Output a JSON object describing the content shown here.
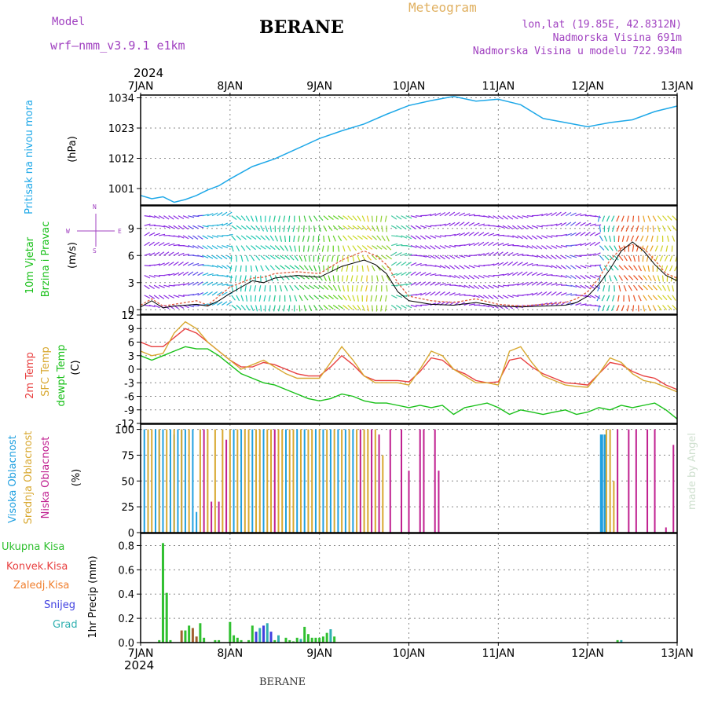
{
  "header": {
    "model_label": "Model",
    "model_name": "wrf–nmm_v3.9.1 e1km",
    "title": "BERANE",
    "meteogram": "Meteogram",
    "coords": "lon,lat (19.85E, 42.8312N)",
    "elevation": "Nadmorska Visina 691m",
    "model_elevation": "Nadmorska Visina u modelu 722.934m",
    "year_top": "2024",
    "year_bottom": "2024",
    "footer": "BERANE",
    "credit": "made by Angel"
  },
  "colors": {
    "pressure": "#1ea8e8",
    "wind_label": "#18c018",
    "temp2m": "#e84040",
    "sfc": "#d8a830",
    "dewpt": "#18c018",
    "cloud_high": "#20a0e0",
    "cloud_mid": "#d8a830",
    "cloud_low": "#c02090",
    "total": "#30c030",
    "konv": "#e84040",
    "zaledj": "#f08030",
    "snijeg": "#4040e0",
    "grad": "#30b0b0",
    "header_purple": "#a040c0",
    "meteogram_gold": "#e0b060"
  },
  "chart_data": [
    {
      "type": "line",
      "title": "",
      "ylabel_left": "Pritisak na nivou mora",
      "ylabel_unit": "(hPa)",
      "x_ticks": [
        "7JAN",
        "8JAN",
        "9JAN",
        "10JAN",
        "11JAN",
        "12JAN",
        "13JAN"
      ],
      "yticks": [
        1001,
        1012,
        1023,
        1034
      ],
      "ylim": [
        995,
        1035
      ],
      "x_hours": [
        0,
        3,
        6,
        9,
        12,
        15,
        18,
        21,
        24,
        30,
        36,
        42,
        48,
        54,
        60,
        66,
        72,
        78,
        84,
        90,
        96,
        102,
        108,
        114,
        120,
        126,
        132,
        138,
        144
      ],
      "series": [
        {
          "name": "Pritisak na nivou mora",
          "values": [
            998.5,
            997.3,
            998.0,
            996.0,
            997.0,
            998.5,
            1000.5,
            1002.0,
            1004.5,
            1009.0,
            1011.8,
            1015.5,
            1019.2,
            1022.0,
            1024.5,
            1028.0,
            1031.2,
            1033.0,
            1034.5,
            1032.8,
            1033.5,
            1031.5,
            1026.5,
            1025.0,
            1023.5,
            1025.0,
            1026.0,
            1029.0,
            1031.0
          ]
        }
      ],
      "grid": true
    },
    {
      "type": "line",
      "title": "",
      "ylabel_left": "10m Vjetar",
      "ylabel_left2": "Brzina i Pravac",
      "ylabel_unit": "(m/s)",
      "compass": {
        "n": "N",
        "s": "S",
        "e": "E",
        "w": "W"
      },
      "yticks": [
        0,
        3,
        6,
        9
      ],
      "ylim": [
        -0.5,
        11.5
      ],
      "x_hours": [
        0,
        3,
        6,
        9,
        12,
        15,
        18,
        21,
        24,
        27,
        30,
        33,
        36,
        42,
        48,
        54,
        60,
        63,
        66,
        69,
        72,
        78,
        84,
        90,
        96,
        102,
        108,
        114,
        117,
        120,
        123,
        126,
        129,
        132,
        135,
        138,
        141,
        144
      ],
      "series": [
        {
          "name": "10m Vjetar",
          "values": [
            0.5,
            1.2,
            0.4,
            0.6,
            0.8,
            1.0,
            0.5,
            1.5,
            2.5,
            3.0,
            3.5,
            3.6,
            4.0,
            4.2,
            4.0,
            5.5,
            6.5,
            6.0,
            5.0,
            3.0,
            1.5,
            1.0,
            0.8,
            1.2,
            0.6,
            0.4,
            0.6,
            0.8,
            1.2,
            2.0,
            3.5,
            5.5,
            6.8,
            7.2,
            6.8,
            5.5,
            4.0,
            3.5
          ]
        },
        {
          "name": "Brzina i Pravac",
          "values": [
            0.3,
            1.0,
            0.2,
            0.4,
            0.5,
            0.6,
            0.4,
            1.0,
            1.8,
            2.5,
            3.2,
            3.0,
            3.5,
            3.8,
            3.6,
            4.8,
            5.5,
            5.0,
            4.0,
            2.0,
            1.0,
            0.6,
            0.5,
            0.8,
            0.4,
            0.3,
            0.4,
            0.5,
            0.8,
            1.5,
            2.8,
            4.5,
            6.5,
            7.5,
            6.5,
            5.0,
            3.8,
            3.2
          ]
        }
      ],
      "grid": true
    },
    {
      "type": "line",
      "title": "",
      "ylabel_left": "2m Temp",
      "ylabel_left2": "SFC Temp",
      "ylabel_left3": "dewpt Temp",
      "ylabel_unit": "(C)",
      "yticks": [
        -12,
        -9,
        -6,
        -3,
        0,
        3,
        6,
        9,
        12
      ],
      "ylim": [
        -12,
        12
      ],
      "x_hours": [
        0,
        3,
        6,
        9,
        12,
        15,
        18,
        21,
        24,
        27,
        30,
        33,
        36,
        39,
        42,
        45,
        48,
        51,
        54,
        57,
        60,
        63,
        66,
        69,
        72,
        75,
        78,
        81,
        84,
        87,
        90,
        93,
        96,
        99,
        102,
        105,
        108,
        111,
        114,
        117,
        120,
        123,
        126,
        129,
        132,
        135,
        138,
        141,
        144
      ],
      "series": [
        {
          "name": "2m Temp",
          "values": [
            6.0,
            5.0,
            5.0,
            7.0,
            9.0,
            8.0,
            6.0,
            4.0,
            2.0,
            0.5,
            0.5,
            1.5,
            1.0,
            0.0,
            -1.0,
            -1.5,
            -1.5,
            0.5,
            3.0,
            1.0,
            -1.5,
            -2.5,
            -2.5,
            -2.5,
            -2.8,
            -0.5,
            2.5,
            2.0,
            0.0,
            -1.0,
            -2.5,
            -3.0,
            -2.8,
            2.0,
            2.5,
            0.5,
            -1.0,
            -2.0,
            -3.0,
            -3.2,
            -3.5,
            -1.0,
            1.5,
            1.0,
            -0.5,
            -1.5,
            -2.0,
            -3.5,
            -4.5
          ]
        },
        {
          "name": "SFC Temp",
          "values": [
            4.0,
            3.0,
            3.5,
            8.0,
            10.5,
            9.0,
            6.0,
            4.0,
            2.0,
            0.0,
            1.0,
            2.0,
            0.5,
            -1.0,
            -2.0,
            -2.0,
            -2.0,
            1.5,
            5.0,
            2.0,
            -1.5,
            -3.0,
            -3.0,
            -3.0,
            -3.5,
            0.0,
            4.0,
            3.0,
            0.0,
            -1.5,
            -3.0,
            -3.0,
            -3.5,
            4.0,
            5.0,
            1.5,
            -1.5,
            -2.5,
            -3.5,
            -3.8,
            -4.0,
            -1.0,
            2.5,
            1.5,
            -1.0,
            -2.5,
            -3.0,
            -4.0,
            -5.0
          ]
        },
        {
          "name": "dewpt Temp",
          "values": [
            3.0,
            2.0,
            3.0,
            4.0,
            5.0,
            4.5,
            4.5,
            3.0,
            1.0,
            -1.0,
            -2.0,
            -3.0,
            -3.5,
            -4.5,
            -5.5,
            -6.5,
            -7.0,
            -6.5,
            -5.5,
            -6.0,
            -7.0,
            -7.5,
            -7.5,
            -8.0,
            -8.5,
            -8.0,
            -8.5,
            -8.0,
            -10.0,
            -8.5,
            -8.0,
            -7.5,
            -8.5,
            -10.0,
            -9.0,
            -9.5,
            -10.0,
            -9.5,
            -9.0,
            -10.0,
            -9.5,
            -8.5,
            -9.0,
            -8.0,
            -8.5,
            -8.0,
            -7.5,
            -9.0,
            -11.0
          ]
        }
      ],
      "grid": true
    },
    {
      "type": "bar",
      "title": "",
      "ylabel_left": "Visoka Oblacnost",
      "ylabel_left2": "Srednja Oblacnost",
      "ylabel_left3": "Niska Oblacnost",
      "ylabel_unit": "(%)",
      "yticks": [
        0,
        25,
        50,
        75,
        100
      ],
      "ylim": [
        0,
        105
      ],
      "series": [
        {
          "name": "Visoka Oblacnost",
          "x_hours": [
            1,
            2,
            4,
            5,
            6,
            8,
            9,
            10,
            11,
            12,
            14,
            15,
            25,
            27,
            30,
            33,
            39,
            42,
            44,
            47,
            49,
            51,
            53,
            55,
            57,
            123.5,
            124.5
          ],
          "values": [
            100,
            90,
            100,
            100,
            100,
            100,
            95,
            100,
            100,
            100,
            100,
            20,
            100,
            100,
            100,
            100,
            100,
            100,
            100,
            100,
            100,
            100,
            100,
            100,
            100,
            95,
            95
          ]
        },
        {
          "name": "Srednja Oblacnost",
          "x_hours": [
            2,
            3,
            5,
            7,
            9,
            11,
            13,
            16,
            18,
            20,
            22,
            24,
            26,
            28,
            29,
            31,
            32,
            34,
            35,
            37,
            38,
            40,
            41,
            43,
            45,
            46,
            48,
            50,
            52,
            54,
            56,
            58,
            60,
            61,
            63,
            65,
            125,
            126,
            127
          ],
          "values": [
            100,
            100,
            100,
            100,
            100,
            100,
            100,
            100,
            100,
            100,
            100,
            100,
            100,
            100,
            100,
            100,
            100,
            100,
            100,
            100,
            100,
            100,
            100,
            100,
            100,
            100,
            100,
            100,
            100,
            100,
            100,
            100,
            100,
            100,
            100,
            75,
            100,
            100,
            50
          ]
        },
        {
          "name": "Niska Oblacnost",
          "x_hours": [
            17,
            19,
            21,
            23,
            36,
            59,
            62,
            64,
            67,
            70,
            72,
            75,
            76,
            79,
            80,
            128,
            131,
            133,
            136,
            138,
            141,
            143
          ],
          "values": [
            100,
            30,
            30,
            90,
            100,
            100,
            100,
            95,
            100,
            100,
            60,
            100,
            100,
            100,
            60,
            100,
            100,
            100,
            100,
            100,
            5,
            85
          ]
        }
      ],
      "grid": true
    },
    {
      "type": "bar",
      "title": "",
      "ylabel_unit": "1hr Precip (mm)",
      "legend": [
        "Ukupna Kisa",
        "Konvek.Kisa",
        "Zaledj.Kisa",
        "Snijeg",
        "Grad"
      ],
      "yticks": [
        0.0,
        0.2,
        0.4,
        0.6,
        0.8
      ],
      "ylim": [
        0,
        0.9
      ],
      "series": [
        {
          "name": "Ukupna Kisa",
          "x_hours": [
            5,
            6,
            7,
            8,
            12,
            13,
            16,
            17,
            20,
            21,
            24,
            25,
            26,
            27,
            29,
            30,
            32,
            34,
            36,
            39,
            40,
            41,
            42,
            44,
            45,
            46,
            47,
            48,
            49,
            50,
            52,
            128
          ],
          "values": [
            0.02,
            0.82,
            0.41,
            0.02,
            0.1,
            0.14,
            0.16,
            0.04,
            0.02,
            0.02,
            0.17,
            0.06,
            0.04,
            0.02,
            0.02,
            0.14,
            0.01,
            0.01,
            0.02,
            0.04,
            0.02,
            0.01,
            0.04,
            0.13,
            0.07,
            0.04,
            0.04,
            0.04,
            0.05,
            0.08,
            0.05,
            0.02
          ]
        },
        {
          "name": "Konvek.Kisa",
          "x_hours": [
            11,
            14,
            15
          ],
          "values": [
            0.1,
            0.12,
            0.05
          ]
        },
        {
          "name": "Snijeg",
          "x_hours": [
            31,
            33,
            35
          ],
          "values": [
            0.09,
            0.14,
            0.09
          ]
        },
        {
          "name": "Grad",
          "x_hours": [
            32,
            34,
            37,
            43,
            51,
            129
          ],
          "values": [
            0.12,
            0.16,
            0.06,
            0.03,
            0.11,
            0.02
          ]
        }
      ],
      "grid": true
    }
  ]
}
